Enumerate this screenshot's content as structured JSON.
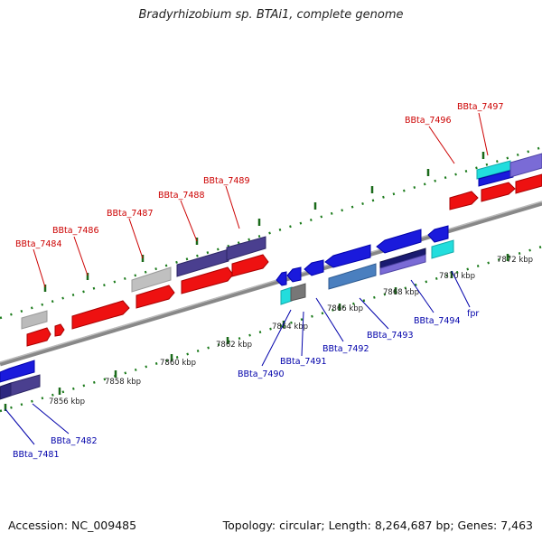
{
  "title": "Bradyrhizobium sp. BTAi1, complete genome",
  "footer": {
    "accession": "Accession: NC_009485",
    "summary": "Topology: circular; Length: 8,264,687 bp; Genes: 7,463"
  },
  "scale": {
    "unit": "kbp",
    "ticks": [
      {
        "label": "7856 kbp"
      },
      {
        "label": "7858 kbp"
      },
      {
        "label": "7860 kbp"
      },
      {
        "label": "7862 kbp"
      },
      {
        "label": "7864 kbp"
      },
      {
        "label": "7866 kbp"
      },
      {
        "label": "7868 kbp"
      },
      {
        "label": "7870 kbp"
      },
      {
        "label": "7872 kbp"
      }
    ]
  },
  "top_strand_labels": [
    {
      "name": "BBta_7484",
      "color": "#cc0000"
    },
    {
      "name": "BBta_7486",
      "color": "#cc0000"
    },
    {
      "name": "BBta_7487",
      "color": "#cc0000"
    },
    {
      "name": "BBta_7488",
      "color": "#cc0000"
    },
    {
      "name": "BBta_7489",
      "color": "#cc0000"
    },
    {
      "name": "BBta_7496",
      "color": "#cc0000"
    },
    {
      "name": "BBta_7497",
      "color": "#cc0000"
    }
  ],
  "bottom_strand_labels": [
    {
      "name": "BBta_7481",
      "color": "#0000aa"
    },
    {
      "name": "BBta_7482",
      "color": "#0000aa"
    },
    {
      "name": "BBta_7490",
      "color": "#0000aa"
    },
    {
      "name": "BBta_7491",
      "color": "#0000aa"
    },
    {
      "name": "BBta_7492",
      "color": "#0000aa"
    },
    {
      "name": "BBta_7493",
      "color": "#0000aa"
    },
    {
      "name": "BBta_7494",
      "color": "#0000aa"
    },
    {
      "name": "fpr",
      "color": "#0000aa"
    }
  ]
}
